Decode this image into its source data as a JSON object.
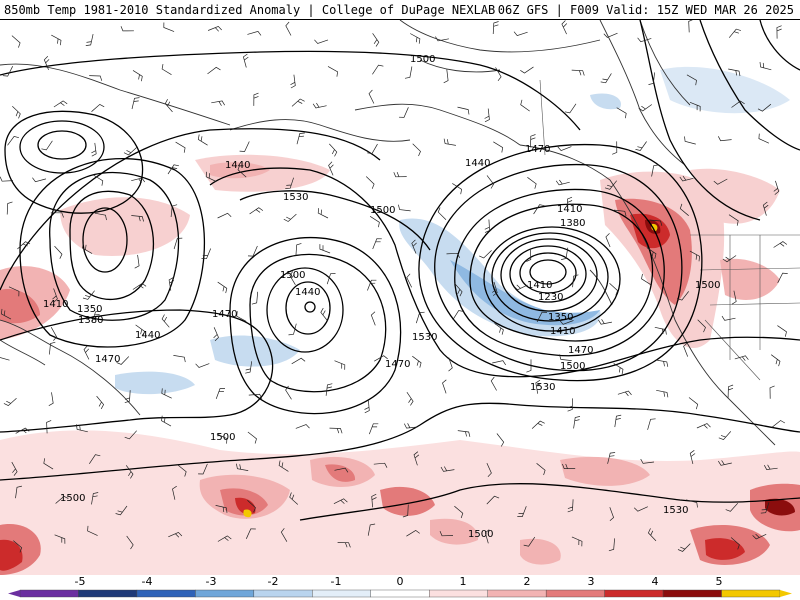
{
  "title": {
    "left": "850mb Temp 1981-2010 Standardized Anomaly | College of DuPage NEXLAB",
    "right": "06Z GFS | F009 Valid: 15Z WED MAR 26 2025"
  },
  "contour_labels": [
    "1500",
    "1440",
    "1530",
    "1500",
    "1470",
    "1440",
    "1410",
    "1380",
    "1410",
    "1230",
    "1350",
    "1410",
    "1470",
    "1500",
    "1530",
    "1500",
    "1440",
    "1350",
    "1380",
    "1410",
    "1440",
    "1470",
    "1470",
    "1500",
    "1530",
    "1470",
    "1500",
    "1500",
    "1530",
    "1500"
  ],
  "colorbar": {
    "ticks": [
      "-5",
      "-4",
      "-3",
      "-2",
      "-1",
      "0",
      "1",
      "2",
      "3",
      "4",
      "5"
    ],
    "colors": [
      "#6b2fa0",
      "#1f3a78",
      "#2f63b8",
      "#6fa6d9",
      "#b9d4ee",
      "#e3eef8",
      "#ffffff",
      "#fbe0e0",
      "#f2b3b3",
      "#e37a7a",
      "#cc2b2b",
      "#8b0d0d",
      "#f3c800"
    ]
  }
}
